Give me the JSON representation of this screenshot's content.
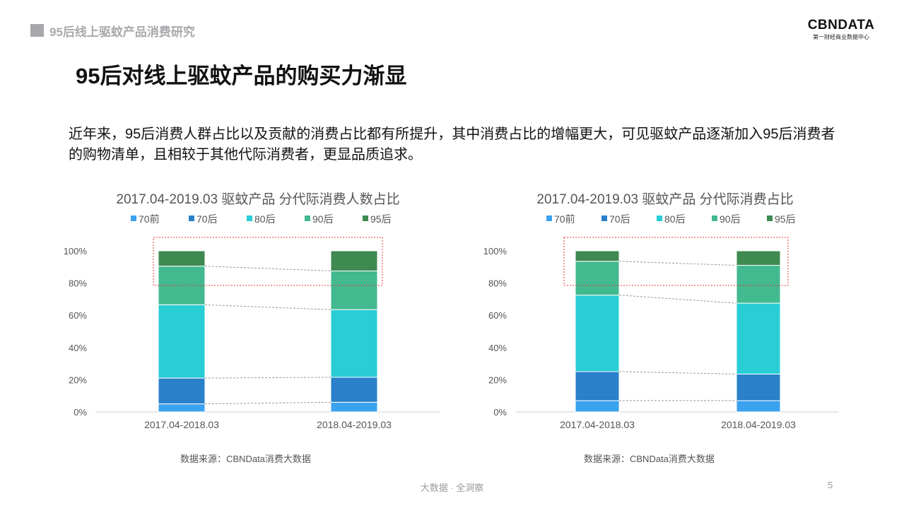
{
  "header": {
    "title": "95后线上驱蚊产品消费研究"
  },
  "logo": {
    "main": "CBNDATA",
    "sub": "第一财经商业数据中心"
  },
  "slide": {
    "title": "95后对线上驱蚊产品的购买力渐显",
    "intro": "近年来，95后消费人群占比以及贡献的消费占比都有所提升，其中消费占比的增幅更大，可见驱蚊产品逐渐加入95后消费者的购物清单，且相较于其他代际消费者，更显品质追求。"
  },
  "colors": {
    "70前": "#3ba2f0",
    "70后": "#2a80c9",
    "80后": "#29cdd6",
    "90后": "#43b98f",
    "95后": "#3f8a51",
    "highlight": "#e63a3a"
  },
  "chart_data": [
    {
      "type": "bar",
      "stacked": true,
      "title": "2017.04-2019.03 驱蚊产品 分代际消费人数占比",
      "categories": [
        "2017.04-2018.03",
        "2018.04-2019.03"
      ],
      "series": [
        {
          "name": "70前",
          "values": [
            5,
            6
          ]
        },
        {
          "name": "70后",
          "values": [
            16,
            15.5
          ]
        },
        {
          "name": "80后",
          "values": [
            45.5,
            42
          ]
        },
        {
          "name": "90后",
          "values": [
            24,
            24
          ]
        },
        {
          "name": "95后",
          "values": [
            9.5,
            12.5
          ]
        }
      ],
      "ylim": [
        0,
        100
      ],
      "yticks": [
        "0%",
        "20%",
        "40%",
        "60%",
        "80%",
        "100%"
      ],
      "legend": "top",
      "source": "数据来源：CBNData消费大数据"
    },
    {
      "type": "bar",
      "stacked": true,
      "title": "2017.04-2019.03 驱蚊产品 分代际消费占比",
      "categories": [
        "2017.04-2018.03",
        "2018.04-2019.03"
      ],
      "series": [
        {
          "name": "70前",
          "values": [
            7,
            7
          ]
        },
        {
          "name": "70后",
          "values": [
            18,
            16.5
          ]
        },
        {
          "name": "80后",
          "values": [
            47.5,
            44
          ]
        },
        {
          "name": "90后",
          "values": [
            21,
            23.5
          ]
        },
        {
          "name": "95后",
          "values": [
            6.5,
            9
          ]
        }
      ],
      "ylim": [
        0,
        100
      ],
      "yticks": [
        "0%",
        "20%",
        "40%",
        "60%",
        "80%",
        "100%"
      ],
      "legend": "top",
      "source": "数据来源：CBNData消费大数据"
    }
  ],
  "footer": {
    "text": "大数据 · 全洞察",
    "page": "5"
  }
}
